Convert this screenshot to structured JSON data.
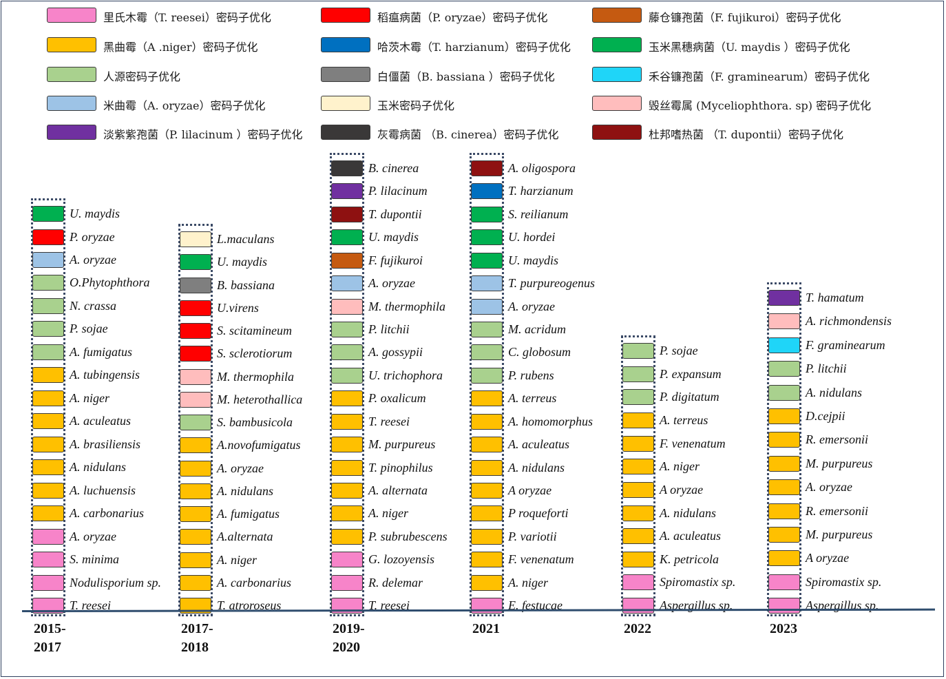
{
  "legend": [
    {
      "label": "里氏木霉（T. reesei）密码子优化",
      "color": "#f784c9"
    },
    {
      "label": "黑曲霉（A .niger）密码子优化",
      "color": "#ffc000"
    },
    {
      "label": "人源密码子优化",
      "color": "#a9d18e"
    },
    {
      "label": "米曲霉（A. oryzae）密码子优化",
      "color": "#9dc3e6"
    },
    {
      "label": "淡紫紫孢菌（P. lilacinum ）密码子优化",
      "color": "#7030a0"
    },
    {
      "label": "稻瘟病菌（P. oryzae）密码子优化",
      "color": "#ff0000"
    },
    {
      "label": "哈茨木霉（T. harzianum）密码子优化",
      "color": "#0070c0"
    },
    {
      "label": "白僵菌（B. bassiana ）密码子优化",
      "color": "#7f7f7f"
    },
    {
      "label": "玉米密码子优化",
      "color": "#fff2cc"
    },
    {
      "label": "灰霉病菌 （B. cinerea）密码子优化",
      "color": "#3a3838"
    },
    {
      "label": "藤仓镰孢菌（F. fujikuroi）密码子优化",
      "color": "#c55a11"
    },
    {
      "label": "玉米黑穗病菌（U. maydis ）密码子优化",
      "color": "#00b050"
    },
    {
      "label": "禾谷镰孢菌（F. graminearum）密码子优化",
      "color": "#1fd5f8"
    },
    {
      "label": "毁丝霉属 (Myceliophthora. sp) 密码子优化",
      "color": "#ffbdbd"
    },
    {
      "label": "杜邦嗜热菌 （T. dupontii）密码子优化",
      "color": "#8e1111"
    }
  ],
  "columns": [
    {
      "year": "2015-\n2017",
      "entries": [
        {
          "label": "U. maydis",
          "color": "#00b050"
        },
        {
          "label": "P. oryzae",
          "color": "#ff0000"
        },
        {
          "label": "A. oryzae",
          "color": "#9dc3e6"
        },
        {
          "label": "O.Phytophthora",
          "color": "#a9d18e"
        },
        {
          "label": "N. crassa",
          "color": "#a9d18e"
        },
        {
          "label": "P. sojae",
          "color": "#a9d18e"
        },
        {
          "label": "A. fumigatus",
          "color": "#a9d18e"
        },
        {
          "label": "A. tubingensis",
          "color": "#ffc000"
        },
        {
          "label": "A. niger",
          "color": "#ffc000"
        },
        {
          "label": "A. aculeatus",
          "color": "#ffc000"
        },
        {
          "label": "A. brasiliensis",
          "color": "#ffc000"
        },
        {
          "label": "A. nidulans",
          "color": "#ffc000"
        },
        {
          "label": "A. luchuensis",
          "color": "#ffc000"
        },
        {
          "label": "A. carbonarius",
          "color": "#ffc000"
        },
        {
          "label": "A. oryzae",
          "color": "#f784c9"
        },
        {
          "label": "S. minima",
          "color": "#f784c9"
        },
        {
          "label": "Nodulisporium sp.",
          "color": "#f784c9"
        },
        {
          "label": "T. reesei",
          "color": "#f784c9"
        }
      ]
    },
    {
      "year": "2017-\n2018",
      "entries": [
        {
          "label": "L.maculans",
          "color": "#fff2cc"
        },
        {
          "label": "U. maydis",
          "color": "#00b050"
        },
        {
          "label": "B. bassiana",
          "color": "#7f7f7f"
        },
        {
          "label": "U.virens",
          "color": "#ff0000"
        },
        {
          "label": "S. scitamineum",
          "color": "#ff0000"
        },
        {
          "label": "S. sclerotiorum",
          "color": "#ff0000"
        },
        {
          "label": "M. thermophila",
          "color": "#ffbdbd"
        },
        {
          "label": "M. heterothallica",
          "color": "#ffbdbd"
        },
        {
          "label": "S. bambusicola",
          "color": "#a9d18e"
        },
        {
          "label": "A.novofumigatus",
          "color": "#ffc000"
        },
        {
          "label": "A. oryzae",
          "color": "#ffc000"
        },
        {
          "label": "A. nidulans",
          "color": "#ffc000"
        },
        {
          "label": "A. fumigatus",
          "color": "#ffc000"
        },
        {
          "label": "A.alternata",
          "color": "#ffc000"
        },
        {
          "label": "A. niger",
          "color": "#ffc000"
        },
        {
          "label": "A. carbonarius",
          "color": "#ffc000"
        },
        {
          "label": "T. atroroseus",
          "color": "#ffc000"
        }
      ]
    },
    {
      "year": "2019-\n2020",
      "entries": [
        {
          "label": "B. cinerea",
          "color": "#3a3838"
        },
        {
          "label": "P. lilacinum",
          "color": "#7030a0"
        },
        {
          "label": "T. dupontii",
          "color": "#8e1111"
        },
        {
          "label": "U. maydis",
          "color": "#00b050"
        },
        {
          "label": "F. fujikuroi",
          "color": "#c55a11"
        },
        {
          "label": "A. oryzae",
          "color": "#9dc3e6"
        },
        {
          "label": "M. thermophila",
          "color": "#ffbdbd"
        },
        {
          "label": "P. litchii",
          "color": "#a9d18e"
        },
        {
          "label": "A. gossypii",
          "color": "#a9d18e"
        },
        {
          "label": "U. trichophora",
          "color": "#a9d18e"
        },
        {
          "label": "P. oxalicum",
          "color": "#ffc000"
        },
        {
          "label": "T. reesei",
          "color": "#ffc000"
        },
        {
          "label": "M. purpureus",
          "color": "#ffc000"
        },
        {
          "label": "T. pinophilus",
          "color": "#ffc000"
        },
        {
          "label": "A. alternata",
          "color": "#ffc000"
        },
        {
          "label": "A. niger",
          "color": "#ffc000"
        },
        {
          "label": "P. subrubescens",
          "color": "#ffc000"
        },
        {
          "label": "G. lozoyensis",
          "color": "#f784c9"
        },
        {
          "label": "R. delemar",
          "color": "#f784c9"
        },
        {
          "label": "T. reesei",
          "color": "#f784c9"
        }
      ]
    },
    {
      "year": "2021",
      "entries": [
        {
          "label": "A. oligospora",
          "color": "#8e1111"
        },
        {
          "label": "T. harzianum",
          "color": "#0070c0"
        },
        {
          "label": "S. reilianum",
          "color": "#00b050"
        },
        {
          "label": "U. hordei",
          "color": "#00b050"
        },
        {
          "label": "U. maydis",
          "color": "#00b050"
        },
        {
          "label": "T. purpureogenus",
          "color": "#9dc3e6"
        },
        {
          "label": "A. oryzae",
          "color": "#9dc3e6"
        },
        {
          "label": "M. acridum",
          "color": "#a9d18e"
        },
        {
          "label": "C. globosum",
          "color": "#a9d18e"
        },
        {
          "label": "P. rubens",
          "color": "#a9d18e"
        },
        {
          "label": "A. terreus",
          "color": "#ffc000"
        },
        {
          "label": "A. homomorphus",
          "color": "#ffc000"
        },
        {
          "label": "A. aculeatus",
          "color": "#ffc000"
        },
        {
          "label": "A. nidulans",
          "color": "#ffc000"
        },
        {
          "label": "A oryzae",
          "color": "#ffc000"
        },
        {
          "label": "P roqueforti",
          "color": "#ffc000"
        },
        {
          "label": "P. variotii",
          "color": "#ffc000"
        },
        {
          "label": "F. venenatum",
          "color": "#ffc000"
        },
        {
          "label": "A. niger",
          "color": "#ffc000"
        },
        {
          "label": "E. festucae",
          "color": "#f784c9"
        }
      ]
    },
    {
      "year": "2022",
      "entries": [
        {
          "label": "P. sojae",
          "color": "#a9d18e"
        },
        {
          "label": "P. expansum",
          "color": "#a9d18e"
        },
        {
          "label": "P. digitatum",
          "color": "#a9d18e"
        },
        {
          "label": "A. terreus",
          "color": "#ffc000"
        },
        {
          "label": "F. venenatum",
          "color": "#ffc000"
        },
        {
          "label": "A. niger",
          "color": "#ffc000"
        },
        {
          "label": "A oryzae",
          "color": "#ffc000"
        },
        {
          "label": "A. nidulans",
          "color": "#ffc000"
        },
        {
          "label": "A. aculeatus",
          "color": "#ffc000"
        },
        {
          "label": "K. petricola",
          "color": "#ffc000"
        },
        {
          "label": "Spiromastix sp.",
          "color": "#f784c9"
        },
        {
          "label": "Aspergillus sp.",
          "color": "#f784c9"
        }
      ]
    },
    {
      "year": "2023",
      "entries": [
        {
          "label": "T. hamatum",
          "color": "#7030a0"
        },
        {
          "label": "A. richmondensis",
          "color": "#ffbdbd"
        },
        {
          "label": "F. graminearum",
          "color": "#1fd5f8"
        },
        {
          "label": "P. litchii",
          "color": "#a9d18e"
        },
        {
          "label": "A. nidulans",
          "color": "#a9d18e"
        },
        {
          "label": "D.cejpii",
          "color": "#ffc000"
        },
        {
          "label": "R. emersonii",
          "color": "#ffc000"
        },
        {
          "label": "M. purpureus",
          "color": "#ffc000"
        },
        {
          "label": "A. oryzae",
          "color": "#ffc000"
        },
        {
          "label": "R. emersonii",
          "color": "#ffc000"
        },
        {
          "label": "M. purpureus",
          "color": "#ffc000"
        },
        {
          "label": "A oryzae",
          "color": "#ffc000"
        },
        {
          "label": "Spiromastix sp.",
          "color": "#f784c9"
        },
        {
          "label": "Aspergillus sp.",
          "color": "#f784c9"
        }
      ]
    }
  ]
}
